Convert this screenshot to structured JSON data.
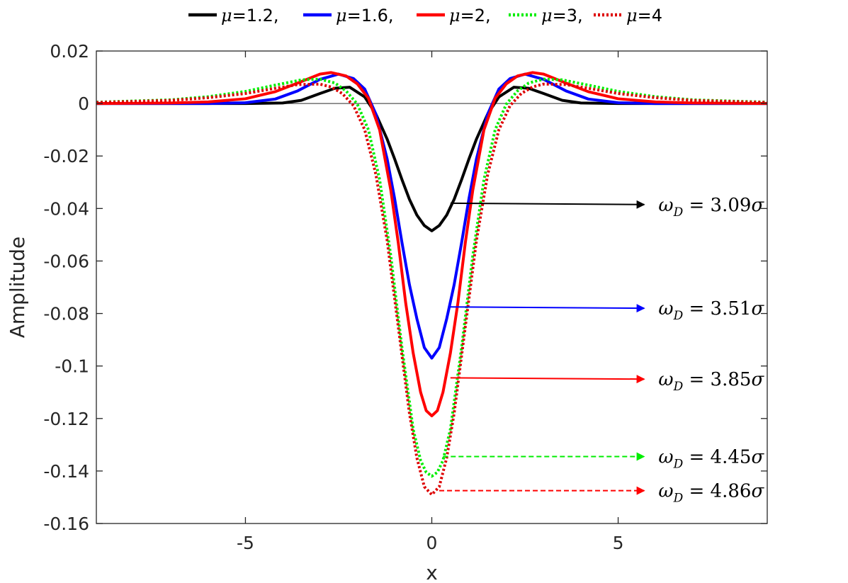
{
  "chart_data": {
    "type": "line",
    "xlabel": "x",
    "ylabel": "Amplitude",
    "xlim": [
      -9,
      9
    ],
    "ylim": [
      -0.16,
      0.02
    ],
    "x_ticks": [
      -5,
      0,
      5
    ],
    "x_tick_labels": [
      "-5",
      "0",
      "5"
    ],
    "y_ticks": [
      0.02,
      0,
      -0.02,
      -0.04,
      -0.06,
      -0.08,
      -0.1,
      -0.12,
      -0.14,
      -0.16
    ],
    "y_tick_labels": [
      "0.02",
      "0",
      "-0.02",
      "-0.04",
      "-0.06",
      "-0.08",
      "-0.1",
      "-0.12",
      "-0.14",
      "-0.16"
    ],
    "grid": false,
    "zero_line": true,
    "legend_position": "top, outside, horizontal",
    "legend_separator": ",",
    "legend_prefix": "μ=",
    "series": [
      {
        "name": "μ=1.2",
        "mu": "1.2",
        "color": "#000000",
        "dash": "solid",
        "x": [
          -9,
          -5,
          -4,
          -3.5,
          -3,
          -2.6,
          -2.2,
          -1.8,
          -1.5,
          -1.2,
          -1,
          -0.8,
          -0.6,
          -0.4,
          -0.2,
          0
        ],
        "y": [
          0,
          0,
          0.0002,
          0.0012,
          0.0038,
          0.0058,
          0.0062,
          0.0025,
          -0.004,
          -0.0135,
          -0.021,
          -0.029,
          -0.0365,
          -0.0425,
          -0.0465,
          -0.0485
        ]
      },
      {
        "name": "μ=1.6",
        "mu": "1.6",
        "color": "#0000ff",
        "dash": "solid",
        "x": [
          -9,
          -6,
          -5,
          -4.2,
          -3.6,
          -3,
          -2.5,
          -2.1,
          -1.8,
          -1.5,
          -1.2,
          -1,
          -0.8,
          -0.6,
          -0.4,
          -0.2,
          0
        ],
        "y": [
          0,
          0,
          0.0003,
          0.0017,
          0.0048,
          0.0092,
          0.0112,
          0.0095,
          0.0055,
          -0.004,
          -0.021,
          -0.036,
          -0.053,
          -0.069,
          -0.082,
          -0.093,
          -0.097
        ]
      },
      {
        "name": "μ=2",
        "mu": "2",
        "color": "#ff0000",
        "dash": "solid",
        "x": [
          -9,
          -7,
          -6,
          -5,
          -4.2,
          -3.6,
          -3,
          -2.7,
          -2.3,
          -2,
          -1.7,
          -1.4,
          -1.1,
          -0.9,
          -0.7,
          -0.5,
          -0.3,
          -0.15,
          0
        ],
        "y": [
          0,
          0.0002,
          0.0006,
          0.0018,
          0.0045,
          0.0078,
          0.0112,
          0.0118,
          0.0105,
          0.0075,
          0.002,
          -0.01,
          -0.033,
          -0.053,
          -0.076,
          -0.095,
          -0.11,
          -0.117,
          -0.119
        ]
      },
      {
        "name": "μ=3",
        "mu": "3",
        "color": "#00ee00",
        "dash": "dotted",
        "x": [
          -9,
          -7,
          -6,
          -5,
          -4.2,
          -3.5,
          -3,
          -2.6,
          -2.3,
          -2,
          -1.7,
          -1.4,
          -1.1,
          -0.8,
          -0.5,
          -0.3,
          -0.15,
          0
        ],
        "y": [
          0.0005,
          0.0014,
          0.0026,
          0.0046,
          0.007,
          0.009,
          0.0093,
          0.0078,
          0.0048,
          -0.0002,
          -0.01,
          -0.029,
          -0.058,
          -0.093,
          -0.124,
          -0.136,
          -0.1405,
          -0.142
        ]
      },
      {
        "name": "μ=4",
        "mu": "4",
        "color": "#dd0000",
        "dash": "dotted",
        "x": [
          -9,
          -7,
          -6,
          -5,
          -4.2,
          -3.6,
          -3,
          -2.7,
          -2.4,
          -2.1,
          -1.8,
          -1.5,
          -1.2,
          -0.9,
          -0.6,
          -0.4,
          -0.2,
          0
        ],
        "y": [
          0.0004,
          0.0012,
          0.0022,
          0.0038,
          0.0058,
          0.0072,
          0.0074,
          0.0063,
          0.0038,
          -0.0008,
          -0.01,
          -0.027,
          -0.052,
          -0.085,
          -0.118,
          -0.135,
          -0.146,
          -0.149
        ]
      }
    ],
    "annotations": [
      {
        "series": "μ=1.2",
        "symbol": "ω",
        "sub": "D",
        "equals": " = ",
        "value": "3.09",
        "unit": "σ",
        "x_from": 0.5,
        "x_to": 5.7,
        "y": -0.038,
        "y_end": -0.0385,
        "line": "solid",
        "color": "#000000"
      },
      {
        "series": "μ=1.6",
        "symbol": "ω",
        "sub": "D",
        "equals": " = ",
        "value": "3.51",
        "unit": "σ",
        "x_from": 0.5,
        "x_to": 5.7,
        "y": -0.0775,
        "y_end": -0.078,
        "line": "solid",
        "color": "#0000ff"
      },
      {
        "series": "μ=2",
        "symbol": "ω",
        "sub": "D",
        "equals": " = ",
        "value": "3.85",
        "unit": "σ",
        "x_from": 0.5,
        "x_to": 5.7,
        "y": -0.1045,
        "y_end": -0.105,
        "line": "solid",
        "color": "#ff0000"
      },
      {
        "series": "μ=3",
        "symbol": "ω",
        "sub": "D",
        "equals": " = ",
        "value": "4.45",
        "unit": "σ",
        "x_from": 0.3,
        "x_to": 5.7,
        "y": -0.1345,
        "y_end": -0.1345,
        "line": "dashed",
        "color": "#00ee00"
      },
      {
        "series": "μ=4",
        "symbol": "ω",
        "sub": "D",
        "equals": " = ",
        "value": "4.86",
        "unit": "σ",
        "x_from": 0.2,
        "x_to": 5.7,
        "y": -0.1475,
        "y_end": -0.1475,
        "line": "dashed",
        "color": "#ff0000"
      }
    ]
  }
}
